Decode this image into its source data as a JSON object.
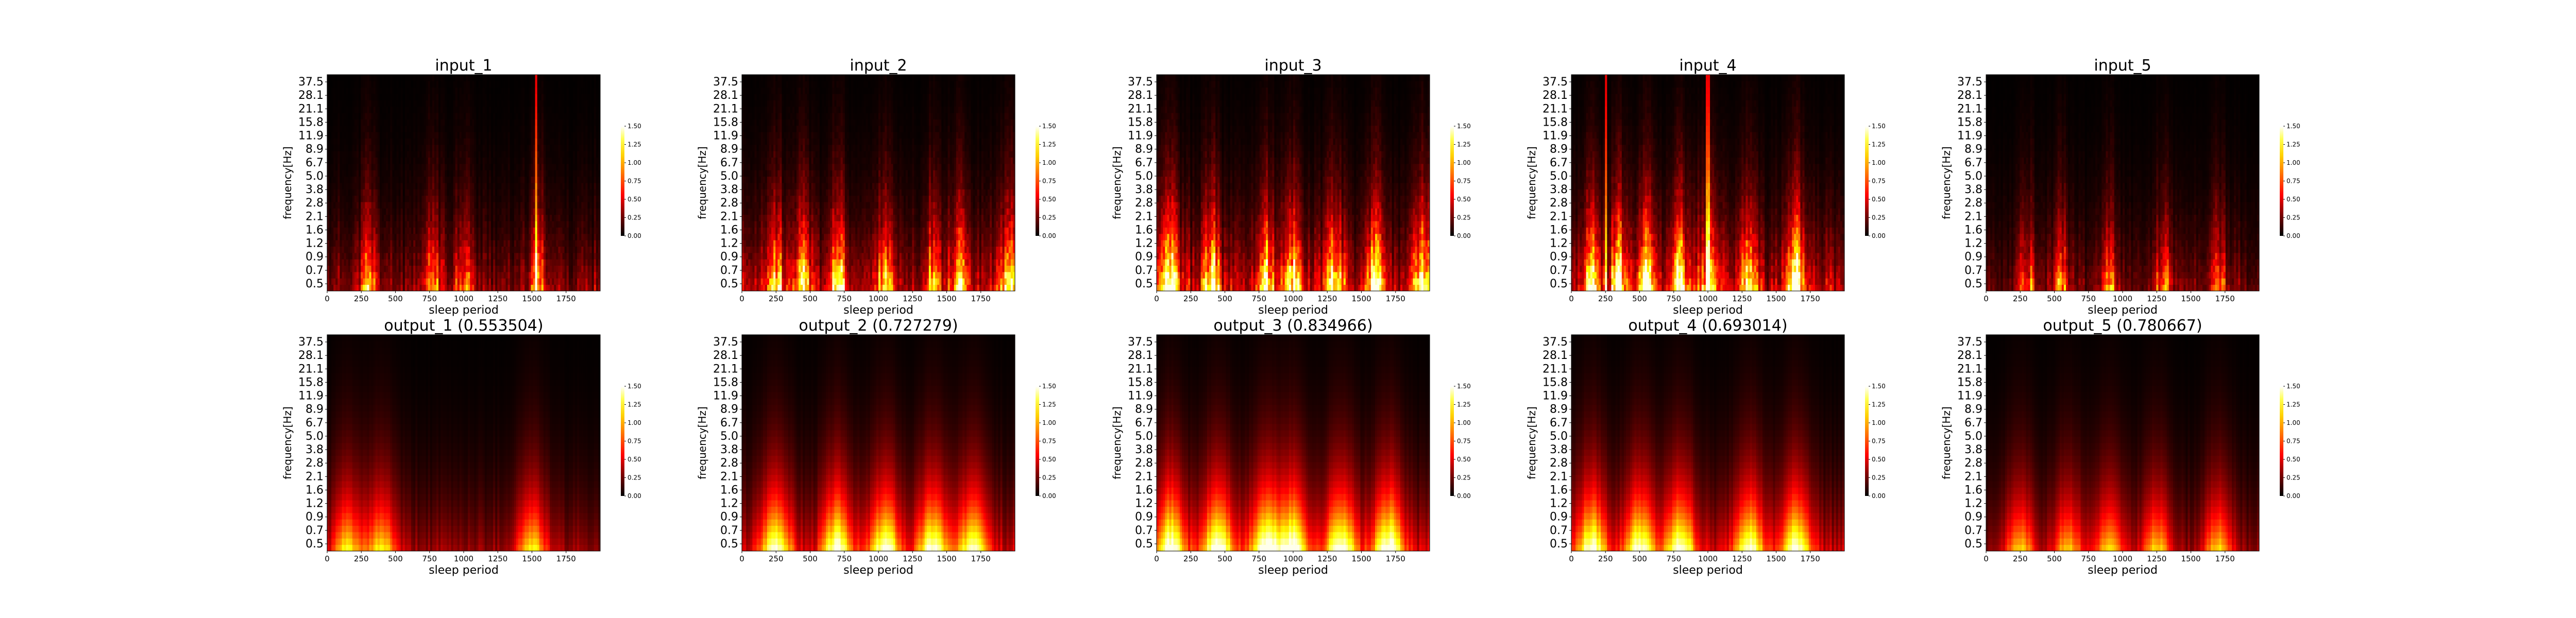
{
  "figure": {
    "background": "#ffffff",
    "colormap": "hot"
  },
  "chart_data": [
    {
      "type": "heatmap",
      "title": "input_1",
      "xlabel": "sleep period",
      "ylabel": "frequency[Hz]",
      "xlim": [
        0,
        2000
      ],
      "xticks": [
        0,
        250,
        500,
        750,
        1000,
        1250,
        1500,
        1750
      ],
      "yticks": [
        "0.5",
        "0.7",
        "0.9",
        "1.2",
        "1.6",
        "2.1",
        "2.8",
        "3.8",
        "5.0",
        "6.7",
        "8.9",
        "11.9",
        "15.8",
        "21.1",
        "28.1",
        "37.5"
      ],
      "colorbar": {
        "ticks": [
          "0.00",
          "0.25",
          "0.50",
          "0.75",
          "1.00",
          "1.25",
          "1.50"
        ],
        "min": 0,
        "max": 1.5
      },
      "intensity": 0.6,
      "seed": 11,
      "peaks": [
        300,
        780,
        1000,
        1550
      ],
      "bright_lines": [
        1530
      ]
    },
    {
      "type": "heatmap",
      "title": "input_2",
      "xlabel": "sleep period",
      "ylabel": "frequency[Hz]",
      "xlim": [
        0,
        2000
      ],
      "xticks": [
        0,
        250,
        500,
        750,
        1000,
        1250,
        1500,
        1750
      ],
      "yticks": [
        "0.5",
        "0.7",
        "0.9",
        "1.2",
        "1.6",
        "2.1",
        "2.8",
        "3.8",
        "5.0",
        "6.7",
        "8.9",
        "11.9",
        "15.8",
        "21.1",
        "28.1",
        "37.5"
      ],
      "colorbar": {
        "ticks": [
          "0.00",
          "0.25",
          "0.50",
          "0.75",
          "1.00",
          "1.25",
          "1.50"
        ],
        "min": 0,
        "max": 1.5
      },
      "intensity": 0.8,
      "seed": 23,
      "peaks": [
        250,
        450,
        700,
        1050,
        1400,
        1600,
        1950
      ],
      "bright_lines": []
    },
    {
      "type": "heatmap",
      "title": "input_3",
      "xlabel": "sleep period",
      "ylabel": "frequency[Hz]",
      "xlim": [
        0,
        2000
      ],
      "xticks": [
        0,
        250,
        500,
        750,
        1000,
        1250,
        1500,
        1750
      ],
      "yticks": [
        "0.5",
        "0.7",
        "0.9",
        "1.2",
        "1.6",
        "2.1",
        "2.8",
        "3.8",
        "5.0",
        "6.7",
        "8.9",
        "11.9",
        "15.8",
        "21.1",
        "28.1",
        "37.5"
      ],
      "colorbar": {
        "ticks": [
          "0.00",
          "0.25",
          "0.50",
          "0.75",
          "1.00",
          "1.25",
          "1.50"
        ],
        "min": 0,
        "max": 1.5
      },
      "intensity": 0.95,
      "seed": 37,
      "peaks": [
        100,
        400,
        800,
        1000,
        1300,
        1600,
        1950
      ],
      "bright_lines": []
    },
    {
      "type": "heatmap",
      "title": "input_4",
      "xlabel": "sleep period",
      "ylabel": "frequency[Hz]",
      "xlim": [
        0,
        2000
      ],
      "xticks": [
        0,
        250,
        500,
        750,
        1000,
        1250,
        1500,
        1750
      ],
      "yticks": [
        "0.5",
        "0.7",
        "0.9",
        "1.2",
        "1.6",
        "2.1",
        "2.8",
        "3.8",
        "5.0",
        "6.7",
        "8.9",
        "11.9",
        "15.8",
        "21.1",
        "28.1",
        "37.5"
      ],
      "colorbar": {
        "ticks": [
          "0.00",
          "0.25",
          "0.50",
          "0.75",
          "1.00",
          "1.25",
          "1.50"
        ],
        "min": 0,
        "max": 1.5
      },
      "intensity": 0.9,
      "seed": 41,
      "peaks": [
        150,
        350,
        550,
        800,
        1000,
        1300,
        1650
      ],
      "bright_lines": [
        250,
        1000
      ]
    },
    {
      "type": "heatmap",
      "title": "input_5",
      "xlabel": "sleep period",
      "ylabel": "frequency[Hz]",
      "xlim": [
        0,
        2000
      ],
      "xticks": [
        0,
        250,
        500,
        750,
        1000,
        1250,
        1500,
        1750
      ],
      "yticks": [
        "0.5",
        "0.7",
        "0.9",
        "1.2",
        "1.6",
        "2.1",
        "2.8",
        "3.8",
        "5.0",
        "6.7",
        "8.9",
        "11.9",
        "15.8",
        "21.1",
        "28.1",
        "37.5"
      ],
      "colorbar": {
        "ticks": [
          "0.00",
          "0.25",
          "0.50",
          "0.75",
          "1.00",
          "1.25",
          "1.50"
        ],
        "min": 0,
        "max": 1.5
      },
      "intensity": 0.5,
      "seed": 53,
      "peaks": [
        300,
        550,
        900,
        1300,
        1700
      ],
      "bright_lines": []
    },
    {
      "type": "heatmap",
      "title": "output_1 (0.553504)",
      "xlabel": "sleep period",
      "ylabel": "frequency[Hz]",
      "xlim": [
        0,
        2000
      ],
      "xticks": [
        0,
        250,
        500,
        750,
        1000,
        1250,
        1500,
        1750
      ],
      "yticks": [
        "0.5",
        "0.7",
        "0.9",
        "1.2",
        "1.6",
        "2.1",
        "2.8",
        "3.8",
        "5.0",
        "6.7",
        "8.9",
        "11.9",
        "15.8",
        "21.1",
        "28.1",
        "37.5"
      ],
      "colorbar": {
        "ticks": [
          "0.00",
          "0.25",
          "0.50",
          "0.75",
          "1.00",
          "1.25",
          "1.50"
        ],
        "min": 0,
        "max": 1.5
      },
      "intensity": 0.6,
      "seed": 61,
      "peaks": [
        150,
        400,
        1500
      ],
      "bright_lines": [],
      "smooth": true
    },
    {
      "type": "heatmap",
      "title": "output_2 (0.727279)",
      "xlabel": "sleep period",
      "ylabel": "frequency[Hz]",
      "xlim": [
        0,
        2000
      ],
      "xticks": [
        0,
        250,
        500,
        750,
        1000,
        1250,
        1500,
        1750
      ],
      "yticks": [
        "0.5",
        "0.7",
        "0.9",
        "1.2",
        "1.6",
        "2.1",
        "2.8",
        "3.8",
        "5.0",
        "6.7",
        "8.9",
        "11.9",
        "15.8",
        "21.1",
        "28.1",
        "37.5"
      ],
      "colorbar": {
        "ticks": [
          "0.00",
          "0.25",
          "0.50",
          "0.75",
          "1.00",
          "1.25",
          "1.50"
        ],
        "min": 0,
        "max": 1.5
      },
      "intensity": 0.8,
      "seed": 67,
      "peaks": [
        250,
        700,
        1050,
        1400,
        1700
      ],
      "bright_lines": [],
      "smooth": true
    },
    {
      "type": "heatmap",
      "title": "output_3 (0.834966)",
      "xlabel": "sleep period",
      "ylabel": "frequency[Hz]",
      "xlim": [
        0,
        2000
      ],
      "xticks": [
        0,
        250,
        500,
        750,
        1000,
        1250,
        1500,
        1750
      ],
      "yticks": [
        "0.5",
        "0.7",
        "0.9",
        "1.2",
        "1.6",
        "2.1",
        "2.8",
        "3.8",
        "5.0",
        "6.7",
        "8.9",
        "11.9",
        "15.8",
        "21.1",
        "28.1",
        "37.5"
      ],
      "colorbar": {
        "ticks": [
          "0.00",
          "0.25",
          "0.50",
          "0.75",
          "1.00",
          "1.25",
          "1.50"
        ],
        "min": 0,
        "max": 1.5
      },
      "intensity": 0.85,
      "seed": 71,
      "peaks": [
        100,
        450,
        800,
        1000,
        1350,
        1700
      ],
      "bright_lines": [],
      "smooth": true
    },
    {
      "type": "heatmap",
      "title": "output_4 (0.693014)",
      "xlabel": "sleep period",
      "ylabel": "frequency[Hz]",
      "xlim": [
        0,
        2000
      ],
      "xticks": [
        0,
        250,
        500,
        750,
        1000,
        1250,
        1500,
        1750
      ],
      "yticks": [
        "0.5",
        "0.7",
        "0.9",
        "1.2",
        "1.6",
        "2.1",
        "2.8",
        "3.8",
        "5.0",
        "6.7",
        "8.9",
        "11.9",
        "15.8",
        "21.1",
        "28.1",
        "37.5"
      ],
      "colorbar": {
        "ticks": [
          "0.00",
          "0.25",
          "0.50",
          "0.75",
          "1.00",
          "1.25",
          "1.50"
        ],
        "min": 0,
        "max": 1.5
      },
      "intensity": 0.8,
      "seed": 79,
      "peaks": [
        150,
        500,
        800,
        1300,
        1650
      ],
      "bright_lines": [],
      "smooth": true
    },
    {
      "type": "heatmap",
      "title": "output_5 (0.780667)",
      "xlabel": "sleep period",
      "ylabel": "frequency[Hz]",
      "xlim": [
        0,
        2000
      ],
      "xticks": [
        0,
        250,
        500,
        750,
        1000,
        1250,
        1500,
        1750
      ],
      "yticks": [
        "0.5",
        "0.7",
        "0.9",
        "1.2",
        "1.6",
        "2.1",
        "2.8",
        "3.8",
        "5.0",
        "6.7",
        "8.9",
        "11.9",
        "15.8",
        "21.1",
        "28.1",
        "37.5"
      ],
      "colorbar": {
        "ticks": [
          "0.00",
          "0.25",
          "0.50",
          "0.75",
          "1.00",
          "1.25",
          "1.50"
        ],
        "min": 0,
        "max": 1.5
      },
      "intensity": 0.55,
      "seed": 83,
      "peaks": [
        250,
        600,
        900,
        1250,
        1700
      ],
      "bright_lines": [],
      "smooth": true
    }
  ]
}
